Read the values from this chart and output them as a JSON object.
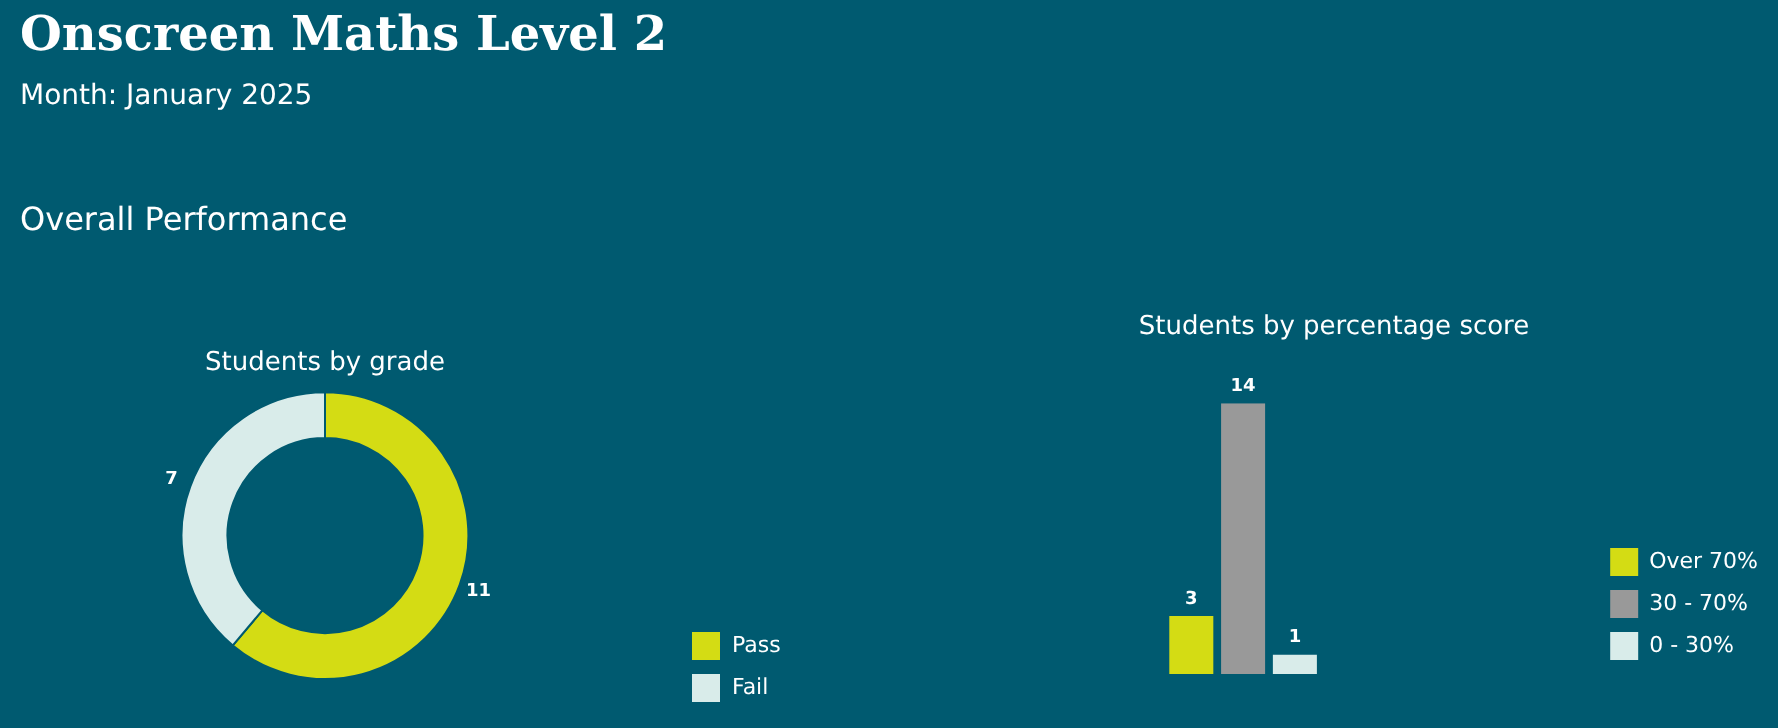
{
  "chart_data": [
    {
      "type": "other",
      "title": "Onscreen Maths Level 2",
      "subtitle": "Month: January 2025",
      "annotations": [
        "Overall Performance"
      ]
    },
    {
      "type": "donut",
      "title": "Students by grade",
      "categories": [
        "Pass",
        "Fail"
      ],
      "values": [
        11,
        7
      ],
      "colors": [
        "#d4dc14",
        "#d9ecea"
      ],
      "data_labels": true,
      "legend": "bottom right"
    },
    {
      "type": "bar",
      "title": "Students by percentage score",
      "categories": [
        null
      ],
      "series": [
        {
          "name": "Over 70%",
          "color": "#d4dc14",
          "values": [
            3
          ]
        },
        {
          "name": "30 - 70%",
          "color": "#999999",
          "values": [
            14
          ]
        },
        {
          "name": "0 - 30%",
          "color": "#d9ecea",
          "values": [
            1
          ]
        }
      ],
      "data_labels": true,
      "legend": "bottom right",
      "tick_labels": false
    }
  ]
}
